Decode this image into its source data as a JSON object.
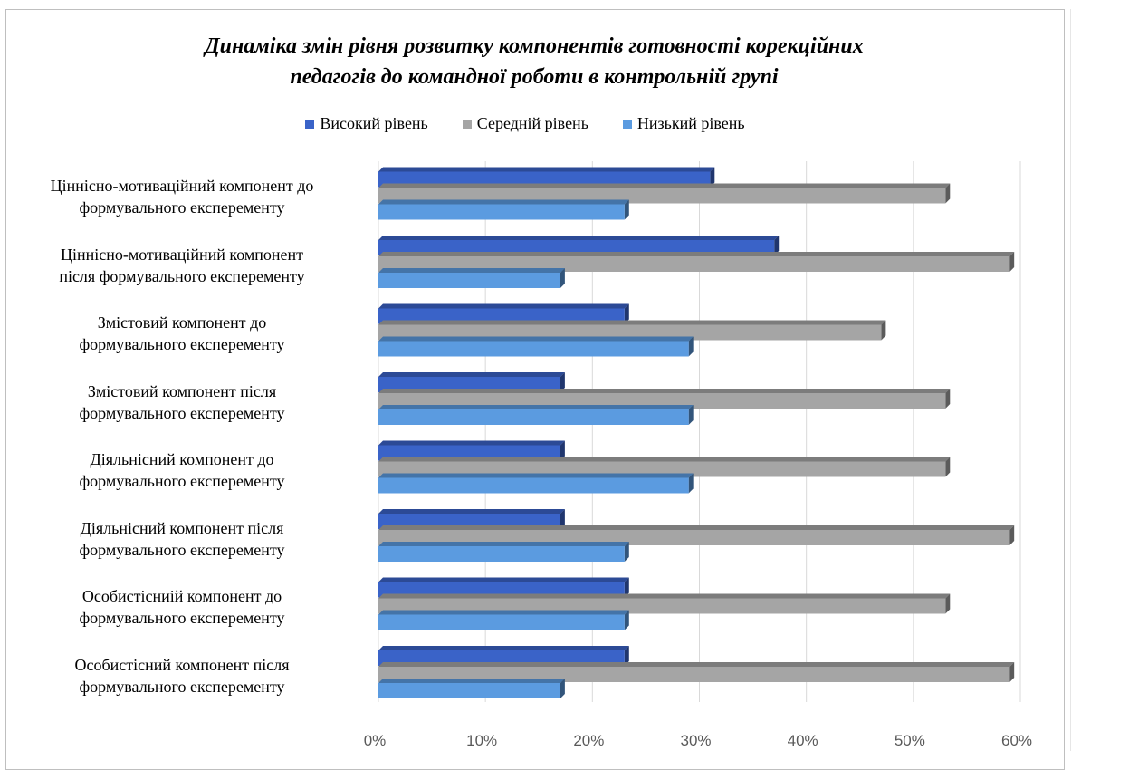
{
  "chart_data": {
    "type": "bar",
    "orientation": "horizontal",
    "title": "Динаміка змін рівня розвитку  компонентів готовності корекційних педагогів до командної роботи в контрольній групі",
    "title_lines": [
      "Динаміка змін рівня розвитку  компонентів готовності корекційних",
      "педагогів до командної роботи в контрольній групі"
    ],
    "categories": [
      [
        "Ціннісно-мотиваційний компонент до",
        "формувального експеременту"
      ],
      [
        "Ціннісно-мотиваційний компонент",
        "після формувального експеременту"
      ],
      [
        "Змістовий компонент  до",
        "формувального експеременту"
      ],
      [
        "Змістовий компонент після",
        "формувального експеременту"
      ],
      [
        "Діяльнісний компонент  до",
        "формувального експеременту"
      ],
      [
        "Діяльнісний компонент  після",
        "формувального експеременту"
      ],
      [
        "Особистісниій компонент до",
        "формувального експеременту"
      ],
      [
        "Особистісний компонент  після",
        "формувального експеременту"
      ]
    ],
    "series": [
      {
        "name": "Високий рівень",
        "color": "#3a63c8",
        "values": [
          31,
          37,
          23,
          17,
          17,
          17,
          23,
          23
        ]
      },
      {
        "name": "Середній рівень",
        "color": "#a5a5a5",
        "values": [
          53,
          59,
          47,
          53,
          53,
          59,
          53,
          59
        ]
      },
      {
        "name": "Низький рівень",
        "color": "#5b9be0",
        "values": [
          23,
          17,
          29,
          29,
          29,
          23,
          23,
          17
        ]
      }
    ],
    "xlim": [
      0,
      60
    ],
    "x_ticks": [
      "0%",
      "10%",
      "20%",
      "30%",
      "40%",
      "50%",
      "60%"
    ],
    "grid": true,
    "legend_position": "top"
  }
}
